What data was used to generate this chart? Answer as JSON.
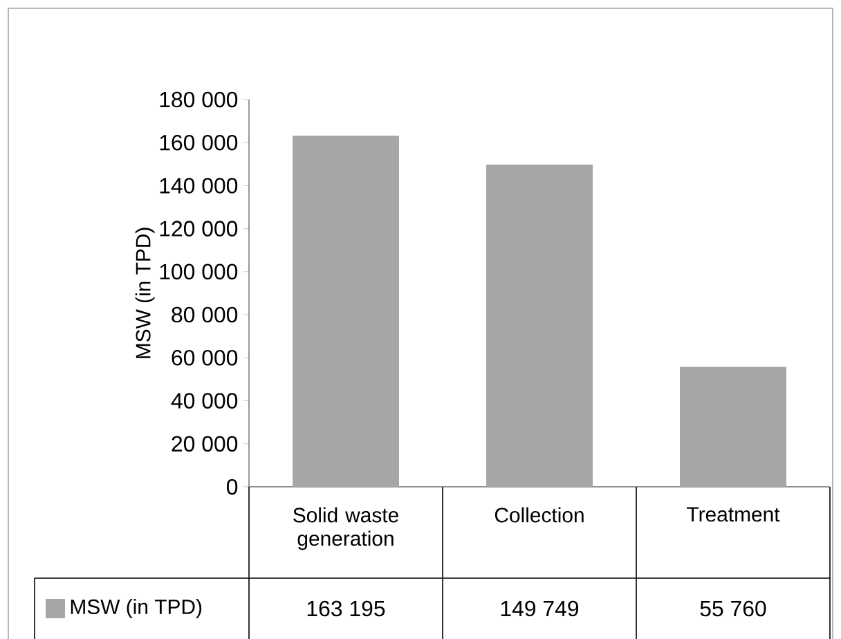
{
  "chart_data": {
    "type": "bar",
    "ylabel": "MSW (in TPD)",
    "categories": [
      "Solid waste generation",
      "Collection",
      "Treatment"
    ],
    "series": [
      {
        "name": "MSW (in TPD)",
        "color": "#a6a6a6",
        "values": [
          163195,
          149749,
          55760
        ],
        "value_labels": [
          "163 195",
          "149 749",
          "55 760"
        ]
      }
    ],
    "ylim": [
      0,
      180000
    ],
    "yticks": [
      0,
      {
        "value": 20000,
        "label": "20 000"
      },
      {
        "value": 40000,
        "label": "40 000"
      },
      {
        "value": 60000,
        "label": "60 000"
      },
      {
        "value": 80000,
        "label": "80 000"
      },
      {
        "value": 100000,
        "label": "100 000"
      },
      {
        "value": 120000,
        "label": "120 000"
      },
      {
        "value": 140000,
        "label": "140 000"
      },
      {
        "value": 160000,
        "label": "160 000"
      },
      {
        "value": 180000,
        "label": "180 000"
      }
    ],
    "legend": "bottom"
  }
}
